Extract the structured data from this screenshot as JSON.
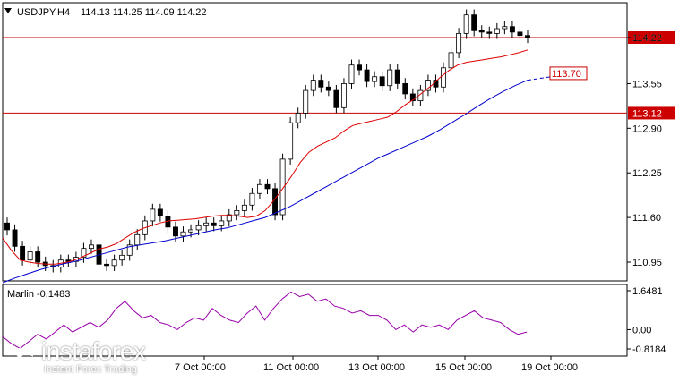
{
  "header": {
    "symbol": "USDJPY,H4",
    "ohlc": "114.13 114.25 114.09 114.22"
  },
  "indicator": {
    "label": "Marlin -0.1483"
  },
  "colors": {
    "candle": "#000000",
    "ma_fast": "#dd0000",
    "ma_slow": "#0000cc",
    "level": "#cc0000",
    "osc": "#9900aa",
    "grid_border": "#000000"
  },
  "chart_data": [
    {
      "type": "candlestick",
      "title": "USDJPY,H4",
      "y_ticks": [
        "114.22",
        "113.55",
        "112.90",
        "112.25",
        "111.60",
        "110.95"
      ],
      "x_ticks": [
        "7 Oct 00:00",
        "11 Oct 00:00",
        "13 Oct 00:00",
        "15 Oct 00:00",
        "19 Oct 00:00"
      ],
      "ylim": [
        110.7,
        115.1
      ],
      "levels": [
        {
          "value": 114.22,
          "label": "114.22"
        },
        {
          "value": 113.12,
          "label": "113.12"
        }
      ],
      "target": {
        "value": 113.7,
        "label": "113.70"
      },
      "closes": [
        111.42,
        111.18,
        110.98,
        111.1,
        110.95,
        110.9,
        110.88,
        110.98,
        110.96,
        111.02,
        111.15,
        111.2,
        110.92,
        110.9,
        110.98,
        111.05,
        111.2,
        111.35,
        111.55,
        111.72,
        111.62,
        111.46,
        111.33,
        111.39,
        111.42,
        111.48,
        111.52,
        111.48,
        111.55,
        111.64,
        111.7,
        111.78,
        111.95,
        112.08,
        112.02,
        111.64,
        112.45,
        112.98,
        113.12,
        113.45,
        113.6,
        113.5,
        113.45,
        113.2,
        113.55,
        113.82,
        113.75,
        113.58,
        113.65,
        113.52,
        113.75,
        113.55,
        113.4,
        113.3,
        113.45,
        113.6,
        113.5,
        113.78,
        114.0,
        114.28,
        114.55,
        114.32,
        114.3,
        114.28,
        114.35,
        114.38,
        114.3,
        114.25,
        114.22
      ],
      "series": [
        {
          "name": "fast MA",
          "values": [
            111.3,
            111.12,
            110.98,
            110.95,
            110.93,
            110.92,
            110.92,
            110.94,
            110.97,
            111.02,
            111.08,
            111.14,
            111.17,
            111.22,
            111.3,
            111.38,
            111.44,
            111.48,
            111.52,
            111.55,
            111.56,
            111.57,
            111.58,
            111.6,
            111.62,
            111.63,
            111.63,
            111.62,
            111.6,
            111.62,
            111.7,
            111.85,
            112.02,
            112.2,
            112.4,
            112.55,
            112.64,
            112.7,
            112.76,
            112.86,
            112.94,
            112.97,
            113.0,
            113.03,
            113.06,
            113.14,
            113.24,
            113.32,
            113.42,
            113.52,
            113.64,
            113.74,
            113.82,
            113.86,
            113.88,
            113.9,
            113.92,
            113.94,
            113.97,
            114.0,
            114.04
          ]
        },
        {
          "name": "slow MA",
          "values": [
            110.65,
            110.72,
            110.78,
            110.84,
            110.89,
            110.93,
            110.97,
            111.02,
            111.07,
            111.12,
            111.17,
            111.2,
            111.23,
            111.26,
            111.3,
            111.34,
            111.38,
            111.42,
            111.45,
            111.5,
            111.55,
            111.6,
            111.68,
            111.76,
            111.86,
            111.96,
            112.06,
            112.16,
            112.26,
            112.36,
            112.46,
            112.54,
            112.62,
            112.7,
            112.78,
            112.88,
            112.99,
            113.1,
            113.22,
            113.33,
            113.43,
            113.52,
            113.6
          ]
        }
      ]
    },
    {
      "type": "line",
      "title": "Marlin -0.1483",
      "y_ticks": [
        "1.6481",
        "0.00",
        "-0.8184"
      ],
      "ylim": [
        -1.0,
        1.8
      ],
      "values": [
        -0.3,
        -0.6,
        -0.8,
        -0.5,
        -0.2,
        -0.4,
        -0.1,
        0.2,
        -0.1,
        0.1,
        0.3,
        0.1,
        0.4,
        0.9,
        1.2,
        0.8,
        0.5,
        0.6,
        0.3,
        0.2,
        0.0,
        0.3,
        0.5,
        0.4,
        0.9,
        0.6,
        0.4,
        0.3,
        0.7,
        1.0,
        0.4,
        0.9,
        1.3,
        1.6,
        1.4,
        1.5,
        1.2,
        1.3,
        1.0,
        0.9,
        0.7,
        0.8,
        0.6,
        0.6,
        0.4,
        0.0,
        0.2,
        -0.1,
        0.2,
        0.1,
        0.2,
        0.0,
        0.4,
        0.6,
        0.8,
        0.5,
        0.4,
        0.3,
        0.0,
        -0.2,
        -0.1
      ]
    }
  ]
}
